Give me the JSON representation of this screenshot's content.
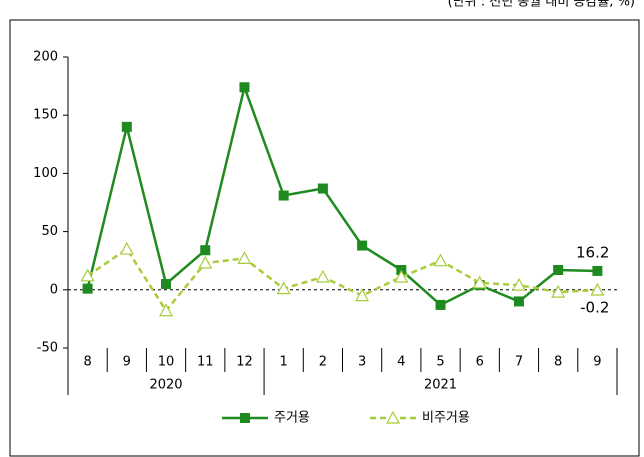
{
  "chart_data": {
    "type": "line",
    "subtitle": "(단위 : 전년 동월 대비 증감률, %)",
    "categories": [
      "8",
      "9",
      "10",
      "11",
      "12",
      "1",
      "2",
      "3",
      "4",
      "5",
      "6",
      "7",
      "8",
      "9"
    ],
    "groups": [
      {
        "name": "2020",
        "count": 5
      },
      {
        "name": "2021",
        "count": 9
      }
    ],
    "series": [
      {
        "name": "주거용",
        "color": "#1f8a1f",
        "marker": "square",
        "dash": false,
        "values": [
          1,
          140,
          5,
          34,
          174,
          81,
          87,
          38,
          17,
          -13,
          4,
          -10,
          17,
          16.2
        ]
      },
      {
        "name": "비주거용",
        "color": "#a8cc3a",
        "marker": "triangle",
        "dash": true,
        "values": [
          12,
          35,
          -18,
          23,
          27,
          1,
          11,
          -5,
          11,
          25,
          6,
          4,
          -2,
          -0.2
        ]
      }
    ],
    "ylim": [
      -50,
      200
    ],
    "yticks": [
      -50,
      0,
      50,
      100,
      150,
      200
    ],
    "grid": false,
    "legend": "bottom"
  }
}
